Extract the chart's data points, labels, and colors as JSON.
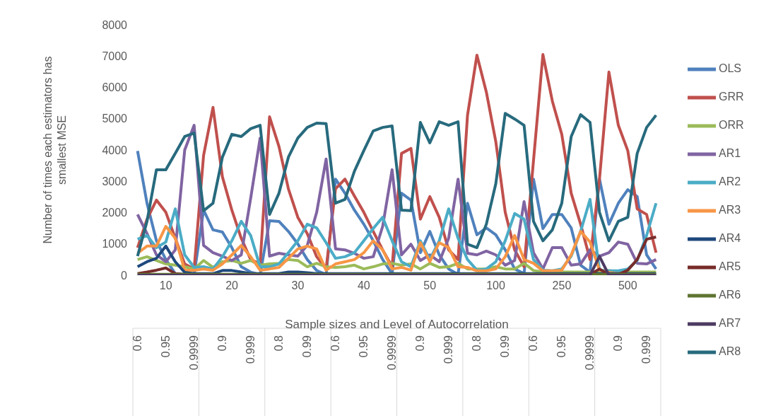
{
  "chart_data": {
    "type": "line",
    "ylabel": "Number of times each estimators has smallest MSE",
    "xlabel": "Sample sizes and Level of Autocorrelation",
    "categories": [
      "0.6",
      null,
      null,
      "0.95",
      null,
      null,
      "0.9999",
      null,
      null,
      "0.9",
      null,
      null,
      "0.999",
      null,
      null,
      "0.8",
      null,
      null,
      "0.99",
      null,
      null,
      "0.6",
      null,
      null,
      "0.95",
      null,
      null,
      "0.9999",
      null,
      null,
      "0.9",
      null,
      null,
      "0.999",
      null,
      null,
      "0.8",
      null,
      null,
      "0.99",
      null,
      null,
      "0.6",
      null,
      null,
      "0.95",
      null,
      null,
      "0.9999",
      null,
      null,
      "0.9",
      null,
      null,
      "0.999",
      null
    ],
    "annotations": [
      "10",
      "20",
      "30",
      "40",
      "50",
      "100",
      "250",
      "500"
    ],
    "ylim": [
      0,
      8000
    ],
    "yticks": [
      0,
      1000,
      2000,
      3000,
      4000,
      5000,
      6000,
      7000,
      8000
    ],
    "legend": "right",
    "line_style": "solid",
    "series": [
      {
        "name": "OLS",
        "color": "#4f81bd",
        "values": [
          3970,
          2300,
          1100,
          500,
          50,
          20,
          20,
          2080,
          1450,
          1380,
          880,
          270,
          100,
          20,
          1740,
          1720,
          1400,
          1000,
          500,
          150,
          20,
          3070,
          2620,
          2080,
          1630,
          1100,
          500,
          50,
          2620,
          2400,
          720,
          1400,
          650,
          200,
          30,
          2300,
          1290,
          1510,
          1290,
          810,
          200,
          50,
          3070,
          1490,
          1940,
          1940,
          1510,
          320,
          100,
          3070,
          1630,
          2300,
          2730,
          2510,
          650,
          200
        ]
      },
      {
        "name": "GRR",
        "color": "#c0504d",
        "values": [
          880,
          1790,
          2400,
          2010,
          1180,
          360,
          200,
          3820,
          5360,
          3140,
          2080,
          1180,
          500,
          360,
          5060,
          4110,
          2760,
          1850,
          1330,
          590,
          200,
          2760,
          3070,
          2530,
          2010,
          1400,
          810,
          270,
          3890,
          4050,
          1790,
          2510,
          1850,
          810,
          500,
          5110,
          7030,
          5850,
          4270,
          2010,
          810,
          270,
          3660,
          7050,
          5560,
          4500,
          2620,
          1630,
          500,
          3070,
          6490,
          4790,
          3980,
          2120,
          1940,
          720
        ]
      },
      {
        "name": "ORR",
        "color": "#9bbb59",
        "values": [
          500,
          590,
          470,
          360,
          320,
          270,
          200,
          470,
          250,
          430,
          470,
          380,
          470,
          320,
          360,
          380,
          500,
          470,
          270,
          380,
          270,
          250,
          270,
          320,
          200,
          270,
          360,
          380,
          320,
          360,
          200,
          380,
          250,
          270,
          380,
          200,
          200,
          200,
          270,
          200,
          200,
          380,
          150,
          100,
          100,
          100,
          100,
          100,
          100,
          100,
          150,
          100,
          100,
          100,
          100,
          100
        ]
      },
      {
        "name": "AR1",
        "color": "#8064a2",
        "values": [
          1940,
          1330,
          650,
          430,
          810,
          4000,
          4790,
          950,
          720,
          610,
          470,
          650,
          2460,
          4380,
          610,
          700,
          650,
          610,
          950,
          2010,
          3710,
          840,
          810,
          700,
          540,
          590,
          1560,
          3370,
          650,
          990,
          470,
          650,
          430,
          1180,
          3070,
          700,
          650,
          770,
          650,
          320,
          470,
          2350,
          720,
          200,
          880,
          880,
          320,
          360,
          810,
          610,
          720,
          1060,
          990,
          380,
          360,
          500
        ]
      },
      {
        "name": "AR2",
        "color": "#4bacc6",
        "values": [
          1150,
          1270,
          880,
          1060,
          2120,
          650,
          250,
          270,
          200,
          590,
          1100,
          1720,
          1270,
          270,
          270,
          360,
          720,
          1100,
          1630,
          1510,
          1040,
          540,
          590,
          720,
          1100,
          1490,
          1850,
          1100,
          430,
          270,
          1100,
          500,
          1100,
          2120,
          1180,
          500,
          160,
          200,
          430,
          1100,
          1970,
          1790,
          500,
          160,
          140,
          200,
          610,
          1400,
          2420,
          160,
          140,
          140,
          200,
          470,
          1270,
          2300
        ]
      },
      {
        "name": "AR3",
        "color": "#f79646",
        "values": [
          700,
          930,
          930,
          1560,
          1180,
          160,
          160,
          200,
          160,
          360,
          650,
          950,
          590,
          160,
          200,
          250,
          540,
          840,
          930,
          840,
          160,
          360,
          430,
          500,
          720,
          1100,
          810,
          200,
          250,
          160,
          1040,
          430,
          1040,
          880,
          270,
          250,
          140,
          140,
          200,
          590,
          1270,
          500,
          380,
          140,
          140,
          160,
          650,
          1400,
          1060,
          160,
          90,
          50,
          null,
          null,
          null,
          null
        ]
      },
      {
        "name": "AR4",
        "color": "#1f497d",
        "values": [
          270,
          430,
          540,
          930,
          430,
          90,
          50,
          50,
          50,
          150,
          150,
          100,
          50,
          50,
          50,
          50,
          100,
          100,
          80,
          50,
          50,
          50,
          50,
          50,
          50,
          50,
          50,
          50,
          50,
          50,
          50,
          50,
          50,
          50,
          50,
          50,
          50,
          50,
          50,
          50,
          50,
          50,
          50,
          50,
          50,
          50,
          50,
          50,
          50,
          50,
          50,
          50,
          50,
          50,
          50,
          50
        ]
      },
      {
        "name": "AR5",
        "color": "#772c2a",
        "values": [
          50,
          100,
          160,
          230,
          50,
          20,
          null,
          null,
          null,
          null,
          null,
          null,
          null,
          null,
          null,
          null,
          null,
          null,
          null,
          null,
          null,
          null,
          null,
          null,
          null,
          null,
          null,
          null,
          null,
          null,
          null,
          null,
          null,
          null,
          null,
          null,
          null,
          null,
          null,
          null,
          null,
          null,
          null,
          null,
          null,
          null,
          null,
          null,
          20,
          200,
          20,
          20,
          160,
          500,
          1150,
          1220
        ]
      },
      {
        "name": "AR6",
        "color": "#5f7530",
        "values": [
          30,
          30,
          30,
          30,
          30,
          30,
          30,
          30,
          30,
          30,
          30,
          30,
          30,
          30,
          30,
          30,
          30,
          30,
          30,
          30,
          30,
          30,
          30,
          30,
          30,
          30,
          30,
          30,
          30,
          30,
          30,
          30,
          30,
          30,
          30,
          30,
          30,
          30,
          30,
          30,
          30,
          30,
          30,
          30,
          30,
          30,
          30,
          30,
          30,
          30,
          30,
          30,
          30,
          30,
          30,
          30
        ]
      },
      {
        "name": "AR7",
        "color": "#4d3b62",
        "values": [
          0,
          0,
          0,
          0,
          0,
          0,
          0,
          0,
          0,
          0,
          0,
          0,
          0,
          0,
          0,
          0,
          0,
          0,
          0,
          0,
          0,
          0,
          0,
          0,
          0,
          0,
          0,
          0,
          0,
          0,
          0,
          0,
          0,
          0,
          0,
          0,
          0,
          0,
          0,
          0,
          0,
          0,
          0,
          0,
          0,
          0,
          0,
          0,
          0,
          600,
          0,
          0,
          0,
          0,
          0,
          0
        ]
      },
      {
        "name": "AR8",
        "color": "#276a7d",
        "values": [
          610,
          1720,
          3370,
          3370,
          3890,
          4430,
          4540,
          2060,
          2300,
          3770,
          4500,
          4430,
          4680,
          4790,
          1940,
          2620,
          3770,
          4380,
          4720,
          4860,
          4840,
          2300,
          2420,
          3320,
          3980,
          4610,
          4720,
          4770,
          2080,
          2060,
          4880,
          4230,
          4900,
          4790,
          4900,
          990,
          880,
          1630,
          2920,
          5170,
          4990,
          4790,
          1720,
          1100,
          1450,
          2300,
          4430,
          5130,
          4880,
          2010,
          1100,
          1720,
          1850,
          3890,
          4720,
          5110
        ]
      }
    ]
  }
}
